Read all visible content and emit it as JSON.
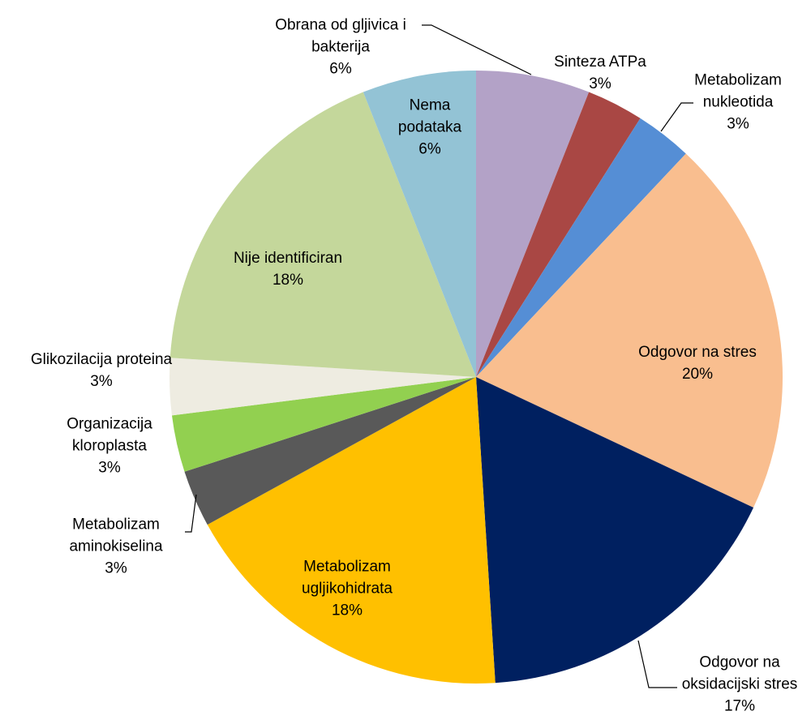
{
  "chart_data": {
    "type": "pie",
    "categories": [
      "Obrana od gljivica i bakterija",
      "Sinteza ATPa",
      "Metabolizam nukleotida",
      "Odgovor na stres",
      "Odgovor na oksidacijski stres",
      "Metabolizam ugljikohidrata",
      "Metabolizam aminokiselina",
      "Organizacija kloroplasta",
      "Glikozilacija proteina",
      "Nije identificiran",
      "Nema podataka"
    ],
    "values": [
      6,
      3,
      3,
      20,
      17,
      18,
      3,
      3,
      3,
      18,
      6
    ],
    "value_labels": [
      "6%",
      "3%",
      "3%",
      "20%",
      "17%",
      "18%",
      "3%",
      "3%",
      "3%",
      "18%",
      "6%"
    ],
    "colors": [
      "#b3a2c7",
      "#a94744",
      "#558ed5",
      "#f9be8f",
      "#002060",
      "#ffc000",
      "#595959",
      "#92d050",
      "#eeece1",
      "#c4d79b",
      "#93c3d5"
    ]
  }
}
